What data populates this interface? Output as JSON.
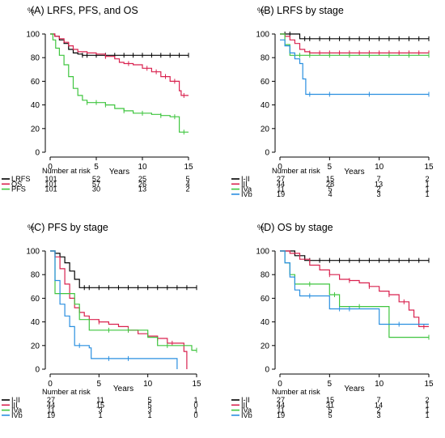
{
  "colors": {
    "black": "#000000",
    "red": "#d9224f",
    "green": "#3fc53f",
    "blue": "#2a8fe0"
  },
  "chart_data": [
    {
      "type": "line",
      "title": "(A) LRFS, PFS, and OS",
      "ylabel": "%",
      "xlabel": "Years",
      "ylim": [
        0,
        100
      ],
      "xlim": [
        0,
        15
      ],
      "yticks": [
        "0",
        "20",
        "40",
        "60",
        "80",
        "100"
      ],
      "xticks": [
        "0",
        "5",
        "10",
        "15"
      ],
      "risk_title": "Number at risk",
      "risk_table": [
        {
          "label": "LRFS",
          "color": "black",
          "values": [
            "101",
            "52",
            "25",
            "5"
          ]
        },
        {
          "label": "OS",
          "color": "red",
          "values": [
            "101",
            "57",
            "26",
            "4"
          ]
        },
        {
          "label": "PFS",
          "color": "green",
          "values": [
            "101",
            "30",
            "13",
            "2"
          ]
        }
      ],
      "series": [
        {
          "color": "black",
          "points": [
            [
              0,
              100
            ],
            [
              0.5,
              98
            ],
            [
              1,
              95
            ],
            [
              1.5,
              92
            ],
            [
              2,
              87
            ],
            [
              2.5,
              84
            ],
            [
              3,
              83
            ],
            [
              3.5,
              82
            ],
            [
              15,
              82
            ]
          ],
          "censor": [
            3.5,
            4,
            5,
            6,
            7,
            8,
            9,
            10,
            11,
            12,
            13,
            14,
            15
          ]
        },
        {
          "color": "red",
          "points": [
            [
              0,
              100
            ],
            [
              0.5,
              98
            ],
            [
              1,
              96
            ],
            [
              1.5,
              93
            ],
            [
              2,
              90
            ],
            [
              2.5,
              87
            ],
            [
              3,
              85
            ],
            [
              4,
              84
            ],
            [
              5,
              83
            ],
            [
              6,
              81
            ],
            [
              7,
              79
            ],
            [
              7.5,
              76
            ],
            [
              8,
              75
            ],
            [
              9,
              74
            ],
            [
              10,
              71
            ],
            [
              11,
              68
            ],
            [
              12,
              64
            ],
            [
              13,
              60
            ],
            [
              14,
              52
            ],
            [
              14.2,
              48
            ],
            [
              15,
              48
            ]
          ],
          "censor": [
            6,
            8.5,
            10.5,
            11.5,
            12.5,
            13.5,
            14.5
          ]
        },
        {
          "color": "green",
          "points": [
            [
              0,
              100
            ],
            [
              0.3,
              95
            ],
            [
              0.6,
              88
            ],
            [
              1,
              82
            ],
            [
              1.5,
              74
            ],
            [
              2,
              64
            ],
            [
              2.5,
              54
            ],
            [
              3,
              48
            ],
            [
              3.5,
              44
            ],
            [
              4,
              42
            ],
            [
              5,
              42
            ],
            [
              6,
              40
            ],
            [
              7,
              37
            ],
            [
              8,
              35
            ],
            [
              9,
              33
            ],
            [
              10,
              33
            ],
            [
              11,
              32
            ],
            [
              12,
              31
            ],
            [
              13,
              30
            ],
            [
              14,
              17
            ],
            [
              15,
              17
            ]
          ],
          "censor": [
            4,
            5,
            6,
            8,
            10,
            12,
            13.5,
            14.5
          ]
        }
      ]
    },
    {
      "type": "line",
      "title": "(B) LRFS by stage",
      "ylabel": "%",
      "xlabel": "Years",
      "ylim": [
        0,
        100
      ],
      "xlim": [
        0,
        15
      ],
      "yticks": [
        "0",
        "20",
        "40",
        "60",
        "80",
        "100"
      ],
      "xticks": [
        "0",
        "5",
        "10",
        "15"
      ],
      "risk_title": "Number at risk",
      "risk_table": [
        {
          "label": "I-II",
          "color": "black",
          "values": [
            "27",
            "15",
            "7",
            "2"
          ]
        },
        {
          "label": "III",
          "color": "red",
          "values": [
            "44",
            "28",
            "13",
            "1"
          ]
        },
        {
          "label": "IVa",
          "color": "green",
          "values": [
            "11",
            "5",
            "2",
            "1"
          ]
        },
        {
          "label": "IVb",
          "color": "blue",
          "values": [
            "19",
            "4",
            "3",
            "1"
          ]
        }
      ],
      "series": [
        {
          "color": "black",
          "points": [
            [
              0,
              100
            ],
            [
              1.5,
              100
            ],
            [
              2,
              96
            ],
            [
              15,
              96
            ]
          ],
          "censor": [
            0.5,
            1,
            2.5,
            3,
            4,
            5,
            6,
            7,
            8,
            9,
            10,
            11,
            12,
            13,
            14,
            15
          ]
        },
        {
          "color": "red",
          "points": [
            [
              0,
              100
            ],
            [
              0.5,
              98
            ],
            [
              1,
              95
            ],
            [
              1.5,
              92
            ],
            [
              2,
              87
            ],
            [
              2.5,
              85
            ],
            [
              3,
              84
            ],
            [
              15,
              84
            ]
          ],
          "censor": [
            3,
            4,
            5,
            6,
            7,
            8,
            9,
            10,
            11,
            12,
            13,
            14,
            15
          ]
        },
        {
          "color": "green",
          "points": [
            [
              0,
              100
            ],
            [
              0.5,
              91
            ],
            [
              1,
              82
            ],
            [
              15,
              82
            ]
          ],
          "censor": [
            2,
            3,
            5,
            7,
            9,
            11,
            13,
            15
          ]
        },
        {
          "color": "blue",
          "points": [
            [
              0,
              95
            ],
            [
              0.5,
              90
            ],
            [
              1,
              84
            ],
            [
              1.5,
              79
            ],
            [
              2,
              75
            ],
            [
              2.3,
              62
            ],
            [
              2.6,
              49
            ],
            [
              15,
              49
            ]
          ],
          "censor": [
            3,
            5,
            9,
            15
          ]
        }
      ]
    },
    {
      "type": "line",
      "title": "(C) PFS by stage",
      "ylabel": "%",
      "xlabel": "Years",
      "ylim": [
        0,
        100
      ],
      "xlim": [
        0,
        15
      ],
      "yticks": [
        "0",
        "20",
        "40",
        "60",
        "80",
        "100"
      ],
      "xticks": [
        "0",
        "5",
        "10",
        "15"
      ],
      "risk_title": "Number at risk",
      "risk_table": [
        {
          "label": "I-II",
          "color": "black",
          "values": [
            "27",
            "11",
            "5",
            "1"
          ]
        },
        {
          "label": "III",
          "color": "red",
          "values": [
            "44",
            "15",
            "5",
            "0"
          ]
        },
        {
          "label": "IVa",
          "color": "green",
          "values": [
            "11",
            "3",
            "3",
            "1"
          ]
        },
        {
          "label": "IVb",
          "color": "blue",
          "values": [
            "19",
            "1",
            "1",
            "0"
          ]
        }
      ],
      "series": [
        {
          "color": "black",
          "points": [
            [
              0,
              100
            ],
            [
              0.5,
              98
            ],
            [
              1,
              95
            ],
            [
              1.5,
              90
            ],
            [
              2,
              83
            ],
            [
              2.5,
              76
            ],
            [
              3,
              69
            ],
            [
              15,
              69
            ]
          ],
          "censor": [
            3.5,
            4,
            5,
            6,
            7,
            8,
            9,
            10,
            11,
            12,
            13,
            14,
            15
          ]
        },
        {
          "color": "red",
          "points": [
            [
              0,
              100
            ],
            [
              0.5,
              95
            ],
            [
              1,
              85
            ],
            [
              1.5,
              72
            ],
            [
              2,
              60
            ],
            [
              2.5,
              52
            ],
            [
              3,
              48
            ],
            [
              3.5,
              45
            ],
            [
              4,
              42
            ],
            [
              5,
              40
            ],
            [
              6,
              38
            ],
            [
              7,
              36
            ],
            [
              8,
              33
            ],
            [
              9,
              30
            ],
            [
              10,
              28
            ],
            [
              11,
              26
            ],
            [
              12,
              22
            ],
            [
              13,
              22
            ],
            [
              13.7,
              15
            ],
            [
              14,
              0
            ]
          ],
          "censor": [
            5,
            8,
            11,
            12.5
          ]
        },
        {
          "color": "green",
          "points": [
            [
              0,
              100
            ],
            [
              0.5,
              64
            ],
            [
              2,
              64
            ],
            [
              2.5,
              55
            ],
            [
              3,
              42
            ],
            [
              4,
              33
            ],
            [
              9,
              33
            ],
            [
              10,
              27
            ],
            [
              11,
              20
            ],
            [
              14,
              20
            ],
            [
              14.5,
              16
            ],
            [
              15,
              16
            ]
          ],
          "censor": [
            1,
            6,
            8,
            12,
            15
          ]
        },
        {
          "color": "blue",
          "points": [
            [
              0,
              100
            ],
            [
              0.5,
              75
            ],
            [
              1,
              55
            ],
            [
              1.5,
              45
            ],
            [
              2,
              36
            ],
            [
              2.5,
              20
            ],
            [
              4,
              18
            ],
            [
              4.2,
              9
            ],
            [
              13,
              9
            ],
            [
              13,
              0
            ]
          ],
          "censor": [
            3,
            6,
            8
          ]
        }
      ]
    },
    {
      "type": "line",
      "title": "(D) OS by stage",
      "ylabel": "%",
      "xlabel": "Years",
      "ylim": [
        0,
        100
      ],
      "xlim": [
        0,
        15
      ],
      "yticks": [
        "0",
        "20",
        "40",
        "60",
        "80",
        "100"
      ],
      "xticks": [
        "0",
        "5",
        "10",
        "15"
      ],
      "risk_title": "Number at risk",
      "risk_table": [
        {
          "label": "I-II",
          "color": "black",
          "values": [
            "27",
            "15",
            "7",
            "2"
          ]
        },
        {
          "label": "III",
          "color": "red",
          "values": [
            "44",
            "31",
            "14",
            "1"
          ]
        },
        {
          "label": "IVa",
          "color": "green",
          "values": [
            "11",
            "5",
            "2",
            "1"
          ]
        },
        {
          "label": "IVb",
          "color": "blue",
          "values": [
            "19",
            "5",
            "3",
            "1"
          ]
        }
      ],
      "series": [
        {
          "color": "black",
          "points": [
            [
              0,
              100
            ],
            [
              1,
              100
            ],
            [
              1.5,
              96
            ],
            [
              2,
              96
            ],
            [
              2.5,
              92
            ],
            [
              15,
              92
            ]
          ],
          "censor": [
            3,
            4,
            5,
            6,
            7,
            8,
            9,
            10,
            11,
            12,
            13,
            14,
            15
          ]
        },
        {
          "color": "red",
          "points": [
            [
              0,
              100
            ],
            [
              1,
              98
            ],
            [
              2,
              93
            ],
            [
              3,
              88
            ],
            [
              4,
              84
            ],
            [
              5,
              80
            ],
            [
              6,
              76
            ],
            [
              7,
              75
            ],
            [
              8,
              73
            ],
            [
              9,
              70
            ],
            [
              10,
              66
            ],
            [
              11,
              63
            ],
            [
              12,
              57
            ],
            [
              13,
              50
            ],
            [
              13.5,
              44
            ],
            [
              14,
              36
            ],
            [
              15,
              36
            ]
          ],
          "censor": [
            5,
            7,
            9,
            11,
            12.5,
            14.5
          ]
        },
        {
          "color": "green",
          "points": [
            [
              0,
              100
            ],
            [
              0.5,
              90
            ],
            [
              1,
              80
            ],
            [
              1.5,
              72
            ],
            [
              4,
              72
            ],
            [
              5,
              63
            ],
            [
              6,
              53
            ],
            [
              10,
              53
            ],
            [
              11,
              27
            ],
            [
              15,
              27
            ]
          ],
          "censor": [
            3,
            5.5,
            8,
            15
          ]
        },
        {
          "color": "blue",
          "points": [
            [
              0,
              100
            ],
            [
              0.5,
              90
            ],
            [
              1,
              78
            ],
            [
              1.5,
              67
            ],
            [
              2,
              62
            ],
            [
              4,
              62
            ],
            [
              5,
              51
            ],
            [
              9,
              51
            ],
            [
              10,
              38
            ],
            [
              14,
              38
            ],
            [
              14.2,
              38
            ],
            [
              15,
              38
            ]
          ],
          "censor": [
            3,
            6,
            7,
            12
          ]
        }
      ]
    }
  ]
}
